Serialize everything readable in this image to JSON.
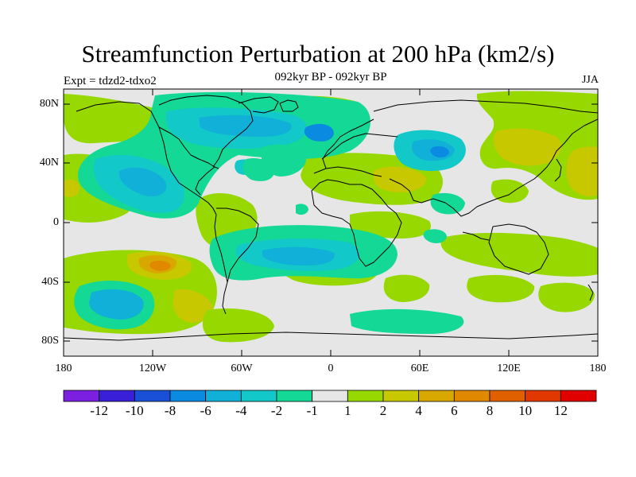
{
  "title": "Streamfunction Perturbation at 200 hPa (km2/s)",
  "experiment": "Expt = tdzd2-tdxo2",
  "period": "092kyr BP - 092kyr BP",
  "season": "JJA",
  "lat_labels": [
    "80N",
    "40N",
    "0",
    "40S",
    "80S"
  ],
  "lon_labels": [
    "180",
    "120W",
    "60W",
    "0",
    "60E",
    "120E",
    "180"
  ],
  "colorbar": {
    "colors": [
      "#7b1fe0",
      "#3a1fd8",
      "#1a4fd8",
      "#0a8ae0",
      "#10b0d8",
      "#12c8c8",
      "#14d896",
      "#e6e6e6",
      "#96d800",
      "#c8c800",
      "#d8a800",
      "#e08800",
      "#e06000",
      "#e03800",
      "#e00000"
    ],
    "labels": [
      "-12",
      "-10",
      "-8",
      "-6",
      "-4",
      "-2",
      "-1",
      "1",
      "2",
      "4",
      "6",
      "8",
      "10",
      "12"
    ]
  }
}
